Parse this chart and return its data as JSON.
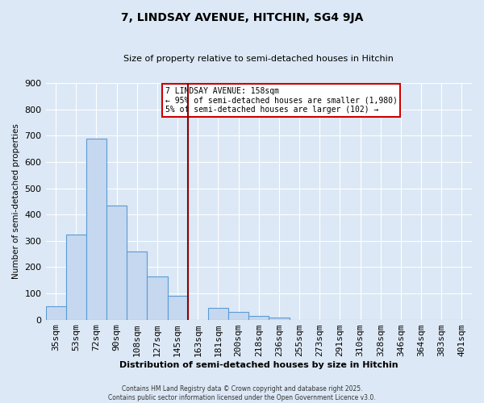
{
  "title": "7, LINDSAY AVENUE, HITCHIN, SG4 9JA",
  "subtitle": "Size of property relative to semi-detached houses in Hitchin",
  "xlabel": "Distribution of semi-detached houses by size in Hitchin",
  "ylabel": "Number of semi-detached properties",
  "bar_labels": [
    "35sqm",
    "53sqm",
    "72sqm",
    "90sqm",
    "108sqm",
    "127sqm",
    "145sqm",
    "163sqm",
    "181sqm",
    "200sqm",
    "218sqm",
    "236sqm",
    "255sqm",
    "273sqm",
    "291sqm",
    "310sqm",
    "328sqm",
    "346sqm",
    "364sqm",
    "383sqm",
    "401sqm"
  ],
  "bar_values": [
    50,
    325,
    690,
    435,
    260,
    165,
    90,
    0,
    45,
    28,
    13,
    7,
    0,
    0,
    0,
    0,
    0,
    0,
    0,
    0,
    0
  ],
  "bar_color": "#c5d8ef",
  "bar_edgecolor": "#5b9bd5",
  "ylim": [
    0,
    900
  ],
  "yticks": [
    0,
    100,
    200,
    300,
    400,
    500,
    600,
    700,
    800,
    900
  ],
  "vline_index": 7,
  "vline_color": "#8b0000",
  "annotation_title": "7 LINDSAY AVENUE: 158sqm",
  "annotation_line1": "← 95% of semi-detached houses are smaller (1,980)",
  "annotation_line2": "5% of semi-detached houses are larger (102) →",
  "annotation_box_color": "#ffffff",
  "annotation_border_color": "#cc0000",
  "bg_color": "#dce8f5",
  "grid_color": "#ffffff",
  "footer1": "Contains HM Land Registry data © Crown copyright and database right 2025.",
  "footer2": "Contains public sector information licensed under the Open Government Licence v3.0."
}
